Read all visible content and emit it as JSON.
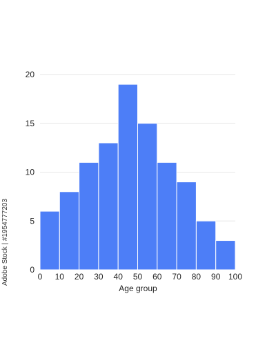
{
  "chart_data": {
    "type": "bar",
    "subtype": "histogram",
    "bins": [
      {
        "x0": 0,
        "x1": 10,
        "value": 6
      },
      {
        "x0": 10,
        "x1": 20,
        "value": 8
      },
      {
        "x0": 20,
        "x1": 30,
        "value": 11
      },
      {
        "x0": 30,
        "x1": 40,
        "value": 13
      },
      {
        "x0": 40,
        "x1": 50,
        "value": 19
      },
      {
        "x0": 50,
        "x1": 60,
        "value": 15
      },
      {
        "x0": 60,
        "x1": 70,
        "value": 11
      },
      {
        "x0": 70,
        "x1": 80,
        "value": 9
      },
      {
        "x0": 80,
        "x1": 90,
        "value": 5
      },
      {
        "x0": 90,
        "x1": 100,
        "value": 3
      }
    ],
    "xlabel": "Age group",
    "ylabel": "",
    "title": "",
    "xlim": [
      0,
      100
    ],
    "ylim": [
      0,
      20
    ],
    "xticks": [
      "0",
      "10",
      "20",
      "30",
      "40",
      "50",
      "60",
      "70",
      "80",
      "90",
      "100"
    ],
    "yticks": [
      "0",
      "5",
      "10",
      "15",
      "20"
    ],
    "grid": "horizontal",
    "bar_color": "#4d7ef7",
    "grid_color": "#e6e6e6"
  },
  "watermark": {
    "text": "Adobe Stock | #1954777203"
  }
}
